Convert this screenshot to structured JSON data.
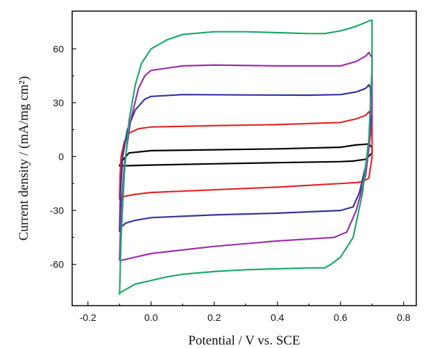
{
  "chart_data": {
    "type": "line",
    "title": "",
    "xlabel": "Potential / V vs. SCE",
    "ylabel": "Current density / (mA/mg cm²)",
    "xlim": [
      -0.25,
      0.84
    ],
    "ylim": [
      -83,
      81
    ],
    "xticks": [
      -0.2,
      0.0,
      0.2,
      0.4,
      0.6,
      0.8
    ],
    "xtick_labels": [
      "-0.2",
      "0.0",
      "0.2",
      "0.4",
      "0.6",
      "0.8"
    ],
    "yticks": [
      -60,
      -30,
      0,
      30,
      60
    ],
    "ytick_labels": [
      "-60",
      "-30",
      "0",
      "30",
      "60"
    ],
    "grid": false,
    "legend": "none",
    "series": [
      {
        "color": "#000000",
        "x": [
          -0.1,
          -0.09,
          -0.07,
          0.0,
          0.2,
          0.4,
          0.6,
          0.65,
          0.69,
          0.7,
          0.7,
          0.68,
          0.64,
          0.6,
          0.4,
          0.2,
          0.0,
          -0.1,
          -0.1
        ],
        "y": [
          -5,
          -2,
          2,
          3.3,
          3.8,
          4.3,
          5.2,
          6.5,
          7,
          5,
          2,
          -1.5,
          -2.5,
          -2.8,
          -3.4,
          -4.0,
          -4.7,
          -5.2,
          -5
        ]
      },
      {
        "color": "#e32626",
        "x": [
          -0.1,
          -0.098,
          -0.095,
          -0.085,
          -0.07,
          -0.04,
          0.0,
          0.2,
          0.4,
          0.6,
          0.65,
          0.68,
          0.69,
          0.7,
          0.7,
          0.69,
          0.67,
          0.65,
          0.6,
          0.4,
          0.2,
          0.0,
          -0.05,
          -0.08,
          -0.1,
          -0.1
        ],
        "y": [
          -24,
          -10,
          0,
          8,
          13,
          15.5,
          16.5,
          17.2,
          17.8,
          19,
          21,
          23,
          25,
          20,
          0,
          -12,
          -14,
          -14.5,
          -15,
          -17,
          -18.5,
          -20,
          -21,
          -22,
          -23,
          -24
        ]
      },
      {
        "color": "#33339e",
        "x": [
          -0.1,
          -0.097,
          -0.09,
          -0.075,
          -0.05,
          -0.02,
          0.0,
          0.1,
          0.3,
          0.5,
          0.6,
          0.65,
          0.68,
          0.69,
          0.695,
          0.695,
          0.68,
          0.66,
          0.64,
          0.6,
          0.4,
          0.2,
          0.0,
          -0.05,
          -0.08,
          -0.1,
          -0.1
        ],
        "y": [
          -42,
          -20,
          0,
          15,
          26,
          32,
          33.5,
          34.5,
          34.3,
          34.2,
          34.5,
          36,
          38,
          40,
          38,
          15,
          -5,
          -20,
          -28,
          -30,
          -31.5,
          -32.5,
          -34,
          -35.5,
          -37,
          -40,
          -42
        ]
      },
      {
        "color": "#9b2fa8",
        "x": [
          -0.1,
          -0.095,
          -0.085,
          -0.065,
          -0.04,
          -0.02,
          0.0,
          0.1,
          0.2,
          0.4,
          0.6,
          0.65,
          0.68,
          0.69,
          0.7,
          0.7,
          0.68,
          0.65,
          0.62,
          0.58,
          0.4,
          0.2,
          0.0,
          -0.05,
          -0.1,
          -0.1
        ],
        "y": [
          -58,
          -30,
          -5,
          20,
          38,
          45,
          48,
          50.5,
          51,
          50.5,
          50.5,
          53,
          56,
          58,
          55,
          20,
          -10,
          -30,
          -42,
          -45,
          -47,
          -50,
          -54,
          -56,
          -58,
          -58
        ]
      },
      {
        "color": "#1aa868",
        "x": [
          -0.1,
          -0.095,
          -0.085,
          -0.07,
          -0.05,
          -0.03,
          0.0,
          0.05,
          0.1,
          0.2,
          0.3,
          0.4,
          0.5,
          0.55,
          0.6,
          0.64,
          0.67,
          0.69,
          0.7,
          0.7,
          0.69,
          0.67,
          0.64,
          0.6,
          0.57,
          0.55,
          0.5,
          0.4,
          0.3,
          0.2,
          0.1,
          0.05,
          0.0,
          -0.05,
          -0.08,
          -0.1,
          -0.1
        ],
        "y": [
          -77,
          -45,
          -10,
          20,
          40,
          52,
          60,
          65,
          68,
          69.5,
          69.5,
          69,
          68.5,
          68.5,
          70,
          72,
          74,
          75.5,
          76,
          50,
          10,
          -20,
          -45,
          -56,
          -60,
          -62,
          -62,
          -62.5,
          -63,
          -64,
          -65.5,
          -67,
          -69,
          -71,
          -74,
          -76,
          -77
        ]
      }
    ]
  }
}
